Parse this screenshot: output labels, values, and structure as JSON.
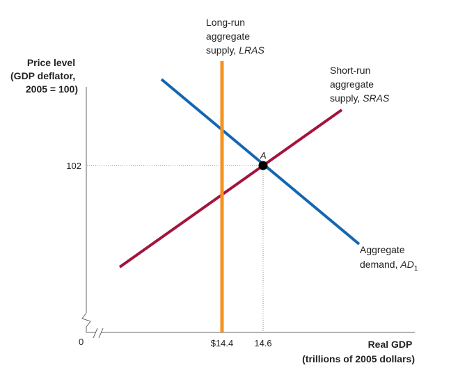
{
  "chart_data": {
    "type": "line",
    "title": "",
    "ylabel": [
      "Price level",
      "(GDP deflator,",
      "2005 = 100)"
    ],
    "xlabel": [
      "Real GDP",
      "(trillions of 2005 dollars)"
    ],
    "origin_label": "0",
    "x_ticks": [
      {
        "value": 14.4,
        "label": "$14.4"
      },
      {
        "value": 14.6,
        "label": "14.6"
      }
    ],
    "y_ticks": [
      {
        "value": 102,
        "label": "102"
      }
    ],
    "axis_breaks": [
      "x",
      "y"
    ],
    "equilibrium": {
      "x": 14.6,
      "y": 102,
      "label": "A"
    },
    "series": [
      {
        "key": "lras",
        "label_lines": [
          "Long-run",
          "aggregate"
        ],
        "label_prefix": "supply, ",
        "label_italic": "LRAS",
        "color": "#F5921E",
        "type": "vertical",
        "x": 14.4
      },
      {
        "key": "sras",
        "label_lines": [
          "Short-run",
          "aggregate"
        ],
        "label_prefix": "supply, ",
        "label_italic": "SRAS",
        "color": "#A3143C",
        "slope": "upward",
        "passes_through": {
          "x": 14.6,
          "y": 102
        }
      },
      {
        "key": "ad",
        "label_lines": [
          "Aggregate"
        ],
        "label_prefix": "demand, ",
        "label_italic": "AD",
        "label_sub": "1",
        "color": "#1466B3",
        "slope": "downward",
        "passes_through": {
          "x": 14.6,
          "y": 102
        }
      }
    ]
  }
}
